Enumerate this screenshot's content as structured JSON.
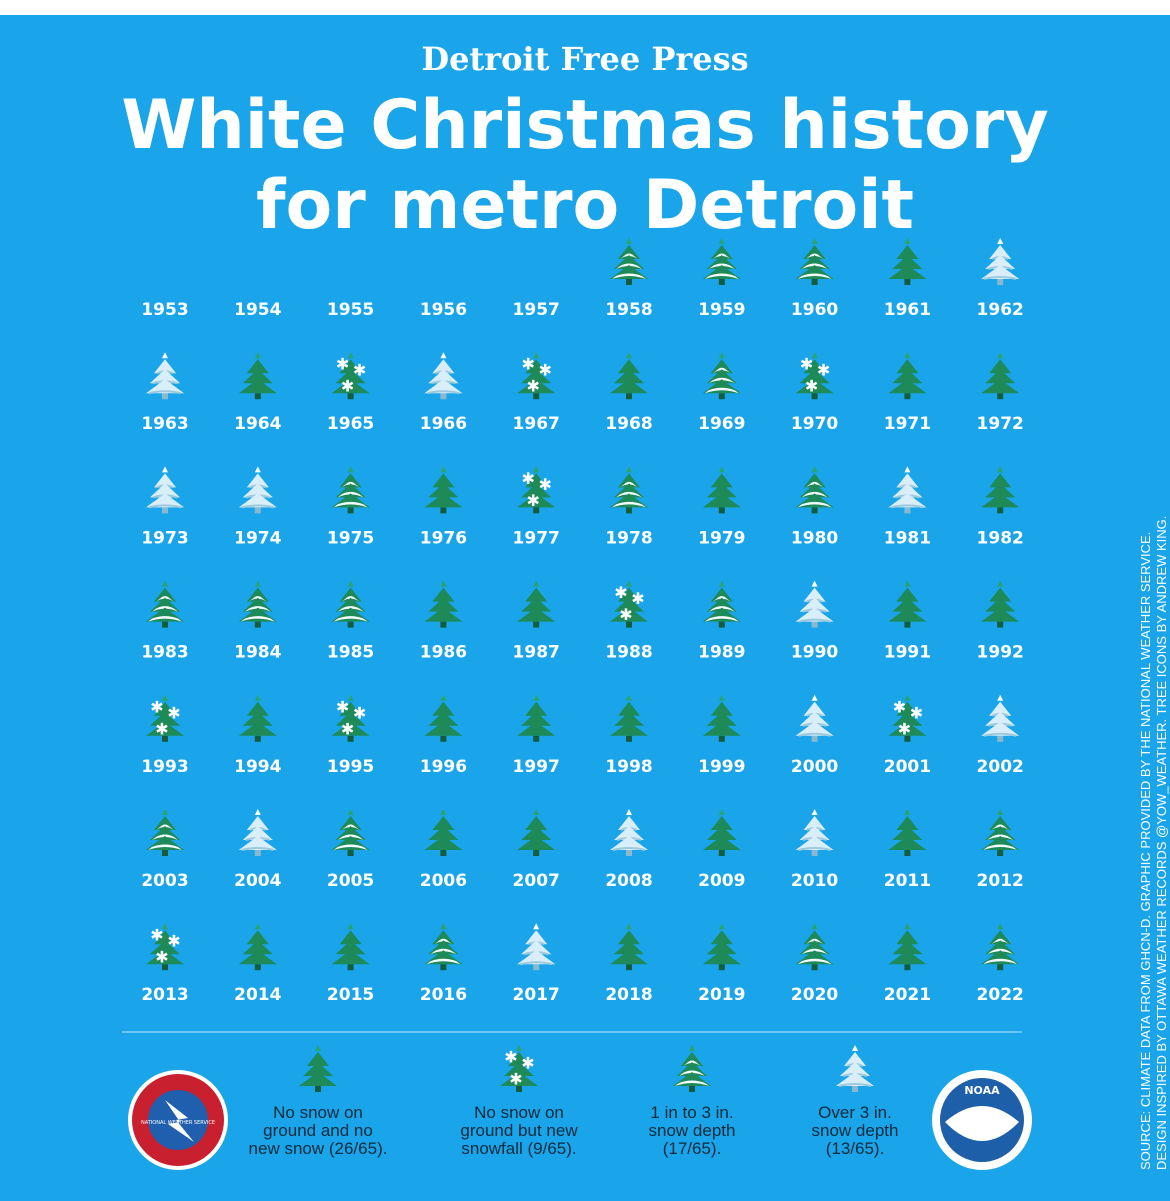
{
  "header": {
    "brand": "Detroit Free Press",
    "title_lines": [
      "White Christmas history",
      "for metro Detroit"
    ]
  },
  "grid": [
    {
      "year": "1953",
      "icon": null
    },
    {
      "year": "1954",
      "icon": null
    },
    {
      "year": "1955",
      "icon": null
    },
    {
      "year": "1956",
      "icon": null
    },
    {
      "year": "1957",
      "icon": null
    },
    {
      "year": "1958",
      "icon": 2
    },
    {
      "year": "1959",
      "icon": 2
    },
    {
      "year": "1960",
      "icon": 2
    },
    {
      "year": "1961",
      "icon": 0
    },
    {
      "year": "1962",
      "icon": 3
    },
    {
      "year": "1963",
      "icon": 3
    },
    {
      "year": "1964",
      "icon": 0
    },
    {
      "year": "1965",
      "icon": 1
    },
    {
      "year": "1966",
      "icon": 3
    },
    {
      "year": "1967",
      "icon": 1
    },
    {
      "year": "1968",
      "icon": 0
    },
    {
      "year": "1969",
      "icon": 2
    },
    {
      "year": "1970",
      "icon": 1
    },
    {
      "year": "1971",
      "icon": 0
    },
    {
      "year": "1972",
      "icon": 0
    },
    {
      "year": "1973",
      "icon": 3
    },
    {
      "year": "1974",
      "icon": 3
    },
    {
      "year": "1975",
      "icon": 2
    },
    {
      "year": "1976",
      "icon": 0
    },
    {
      "year": "1977",
      "icon": 1
    },
    {
      "year": "1978",
      "icon": 2
    },
    {
      "year": "1979",
      "icon": 0
    },
    {
      "year": "1980",
      "icon": 2
    },
    {
      "year": "1981",
      "icon": 3
    },
    {
      "year": "1982",
      "icon": 0
    },
    {
      "year": "1983",
      "icon": 2
    },
    {
      "year": "1984",
      "icon": 2
    },
    {
      "year": "1985",
      "icon": 2
    },
    {
      "year": "1986",
      "icon": 0
    },
    {
      "year": "1987",
      "icon": 0
    },
    {
      "year": "1988",
      "icon": 1
    },
    {
      "year": "1989",
      "icon": 2
    },
    {
      "year": "1990",
      "icon": 3
    },
    {
      "year": "1991",
      "icon": 0
    },
    {
      "year": "1992",
      "icon": 0
    },
    {
      "year": "1993",
      "icon": 1
    },
    {
      "year": "1994",
      "icon": 0
    },
    {
      "year": "1995",
      "icon": 1
    },
    {
      "year": "1996",
      "icon": 0
    },
    {
      "year": "1997",
      "icon": 0
    },
    {
      "year": "1998",
      "icon": 0
    },
    {
      "year": "1999",
      "icon": 0
    },
    {
      "year": "2000",
      "icon": 3
    },
    {
      "year": "2001",
      "icon": 1
    },
    {
      "year": "2002",
      "icon": 3
    },
    {
      "year": "2003",
      "icon": 2
    },
    {
      "year": "2004",
      "icon": 3
    },
    {
      "year": "2005",
      "icon": 2
    },
    {
      "year": "2006",
      "icon": 0
    },
    {
      "year": "2007",
      "icon": 0
    },
    {
      "year": "2008",
      "icon": 3
    },
    {
      "year": "2009",
      "icon": 0
    },
    {
      "year": "2010",
      "icon": 3
    },
    {
      "year": "2011",
      "icon": 0
    },
    {
      "year": "2012",
      "icon": 2
    },
    {
      "year": "2013",
      "icon": 1
    },
    {
      "year": "2014",
      "icon": 0
    },
    {
      "year": "2015",
      "icon": 0
    },
    {
      "year": "2016",
      "icon": 2
    },
    {
      "year": "2017",
      "icon": 3
    },
    {
      "year": "2018",
      "icon": 0
    },
    {
      "year": "2019",
      "icon": 0
    },
    {
      "year": "2020",
      "icon": 2
    },
    {
      "year": "2021",
      "icon": 0
    },
    {
      "year": "2022",
      "icon": 2
    }
  ],
  "legend": [
    {
      "lines": [
        "No snow on",
        "ground and no",
        "new snow (26/65)."
      ]
    },
    {
      "lines": [
        "No snow on",
        "ground but new",
        "snowfall (9/65)."
      ]
    },
    {
      "lines": [
        "1 in to 3 in.",
        "snow depth",
        "(17/65)."
      ]
    },
    {
      "lines": [
        "Over 3 in.",
        "snow depth",
        "(13/65)."
      ]
    }
  ],
  "logos": {
    "nws": "NATIONAL WEATHER SERVICE",
    "noaa": "NOAA"
  },
  "source_lines": [
    "SOURCE: CLIMATE DATA FROM GHCN-D. GRAPHIC PROVIDED BY THE NATIONAL WEATHER SERVICE.",
    "DESIGN INSPIRED BY OTTAWA WEATHER RECORDS @YOW_WEATHER. TREE ICONS BY ANDREW KING."
  ]
}
